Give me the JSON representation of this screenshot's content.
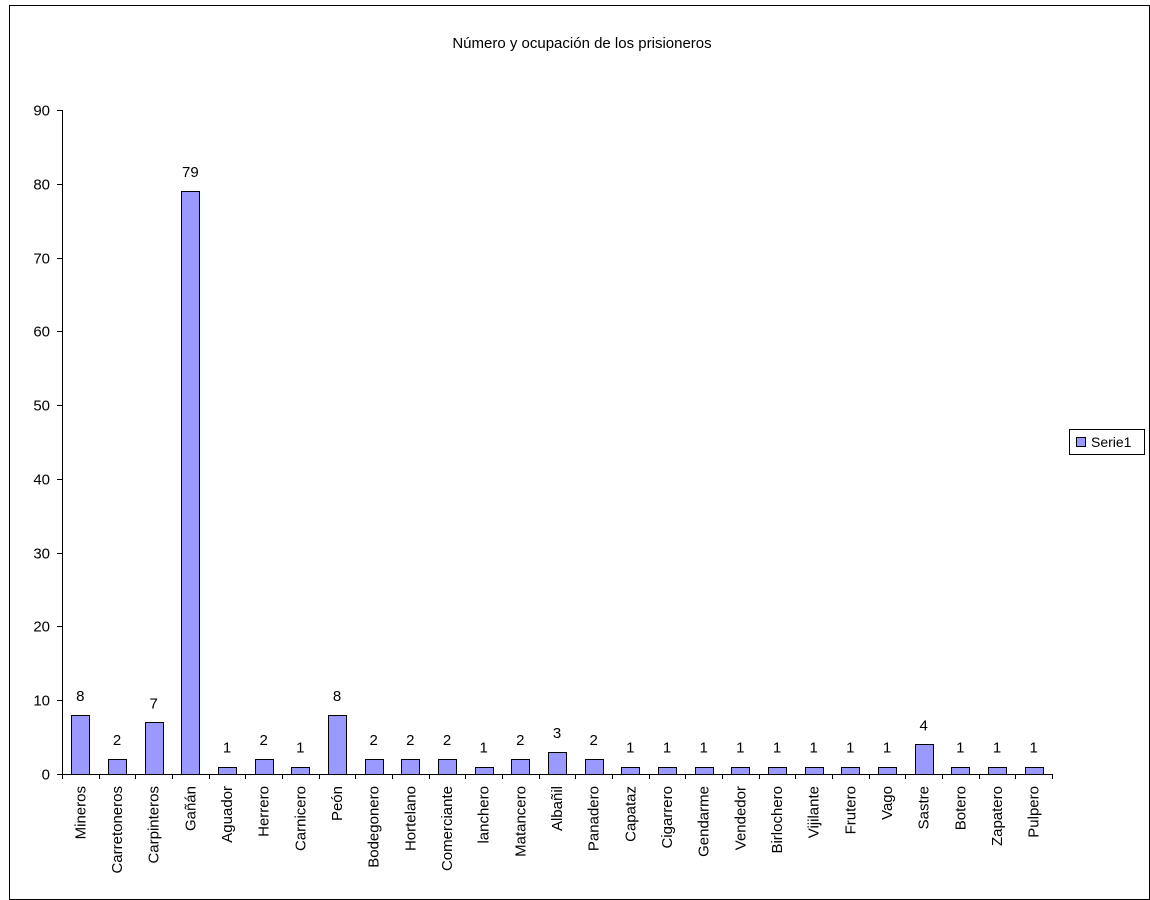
{
  "colors": {
    "bar_fill": "#9999FF",
    "bar_stroke": "#000000",
    "axis": "#000000",
    "border": "#000000",
    "background": "#FFFFFF"
  },
  "chart_data": {
    "type": "bar",
    "title": "Número y ocupación de los prisioneros",
    "xlabel": "",
    "ylabel": "",
    "ylim": [
      0,
      90
    ],
    "y_ticks": [
      0,
      10,
      20,
      30,
      40,
      50,
      60,
      70,
      80,
      90
    ],
    "grid": false,
    "legend_position": "right",
    "categories": [
      "Mineros",
      "Carretoneros",
      "Carpinteros",
      "Gañán",
      "Aguador",
      "Herrero",
      "Carnicero",
      "Peón",
      "Bodegonero",
      "Hortelano",
      "Comerciante",
      "lanchero",
      "Matancero",
      "Albañil",
      "Panadero",
      "Capataz",
      "Cigarrero",
      "Gendarme",
      "Vendedor",
      "Birlochero",
      "Vijilante",
      "Frutero",
      "Vago",
      "Sastre",
      "Botero",
      "Zapatero",
      "Pulpero"
    ],
    "series": [
      {
        "name": "Serie1",
        "values": [
          8,
          2,
          7,
          79,
          1,
          2,
          1,
          8,
          2,
          2,
          2,
          1,
          2,
          3,
          2,
          1,
          1,
          1,
          1,
          1,
          1,
          1,
          1,
          4,
          1,
          1,
          1
        ]
      }
    ]
  }
}
